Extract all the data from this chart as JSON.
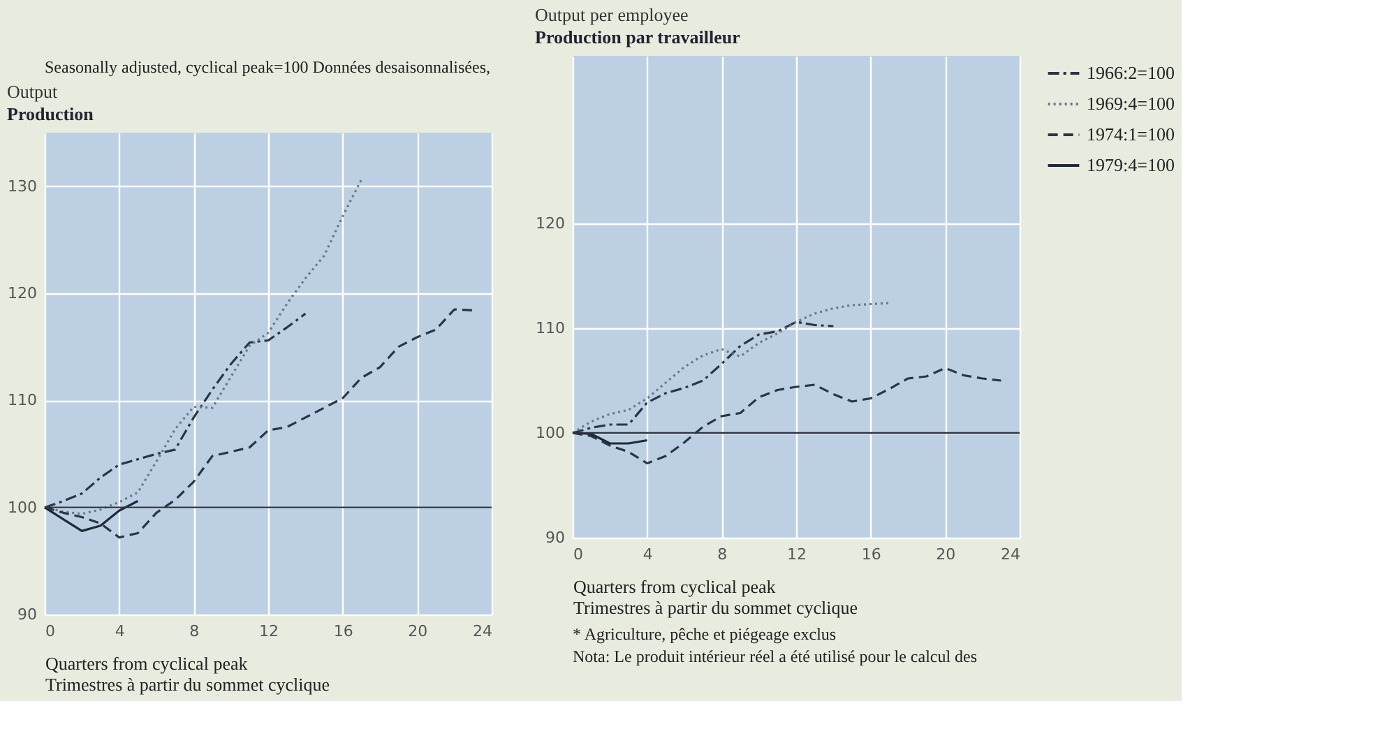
{
  "chart_data": [
    {
      "type": "line",
      "title": "Output",
      "subtitle": "Production",
      "xlabel": "Quarters from cyclical peak\nTrimestres à partir du sommet cyclique",
      "annotations": [
        "Seasonally adjusted, cyclical peak=100   Données desaisonnalisées,"
      ],
      "xlim": [
        0,
        24
      ],
      "xticks": [
        0,
        4,
        8,
        12,
        16,
        20,
        24
      ],
      "ylim": [
        90,
        135
      ],
      "yticks": [
        90,
        100,
        110,
        120,
        130
      ],
      "grid": true,
      "legend": false,
      "series": [
        {
          "color": "#2a3545",
          "line_style": "dashdot",
          "x": [
            0,
            1,
            2,
            3,
            4,
            5,
            6,
            7,
            8,
            9,
            10,
            11,
            12,
            13,
            14
          ],
          "values": [
            100,
            100.6,
            101.3,
            102.8,
            104.0,
            104.5,
            105.0,
            105.4,
            108.4,
            111.0,
            113.4,
            115.4,
            115.6,
            116.8,
            118.1
          ]
        },
        {
          "color": "#66788c",
          "line_style": "dotted",
          "x": [
            0,
            1,
            2,
            3,
            4,
            5,
            6,
            7,
            8,
            9,
            10,
            11,
            12,
            13,
            14,
            15,
            16,
            17
          ],
          "values": [
            100,
            99.6,
            99.4,
            99.8,
            100.5,
            101.4,
            104.3,
            107.3,
            109.4,
            109.3,
            112.2,
            115.1,
            116.3,
            119.0,
            121.4,
            123.5,
            127.2,
            130.6
          ]
        },
        {
          "color": "#2a3545",
          "line_style": "dashed",
          "x": [
            0,
            1,
            2,
            3,
            4,
            5,
            6,
            7,
            8,
            9,
            10,
            11,
            12,
            13,
            14,
            15,
            16,
            17,
            18,
            19,
            20,
            21,
            22,
            23
          ],
          "values": [
            100,
            99.5,
            99.1,
            98.5,
            97.2,
            97.6,
            99.5,
            100.7,
            102.4,
            104.8,
            105.2,
            105.6,
            107.2,
            107.5,
            108.4,
            109.3,
            110.2,
            112.1,
            113.1,
            115.0,
            115.9,
            116.6,
            118.5,
            118.4
          ]
        },
        {
          "color": "#1f2a38",
          "line_style": "solid",
          "x": [
            0,
            1,
            2,
            3,
            4,
            5
          ],
          "values": [
            100,
            98.9,
            97.8,
            98.3,
            99.7,
            100.6
          ]
        }
      ],
      "ref_lines": [
        {
          "axis": "y",
          "value": 100,
          "color": "#2a3545",
          "line_style": "solid"
        }
      ]
    },
    {
      "type": "line",
      "title": "Output per employee",
      "subtitle": "Production par travailleur",
      "xlabel": "Quarters from cyclical peak\nTrimestres à partir du sommet cyclique",
      "annotations": [
        "* Agriculture, pêche et piégeage exclus",
        "Nota: Le produit intérieur réel a été utilisé pour le calcul des"
      ],
      "xlim": [
        0,
        24
      ],
      "xticks": [
        0,
        4,
        8,
        12,
        16,
        20,
        24
      ],
      "ylim": [
        90,
        136
      ],
      "yticks": [
        90,
        100,
        110,
        120
      ],
      "grid": true,
      "legend": "right",
      "series": [
        {
          "name": "1966:2=100",
          "color": "#2a3545",
          "line_style": "dashdot",
          "x": [
            0,
            1,
            2,
            3,
            4,
            5,
            6,
            7,
            8,
            9,
            10,
            11,
            12,
            13,
            14
          ],
          "values": [
            100,
            100.5,
            100.8,
            100.8,
            102.9,
            103.8,
            104.3,
            105.0,
            106.6,
            108.3,
            109.4,
            109.7,
            110.6,
            110.3,
            110.2
          ]
        },
        {
          "name": "1969:4=100",
          "color": "#66788c",
          "line_style": "dotted",
          "x": [
            0,
            1,
            2,
            3,
            4,
            5,
            6,
            7,
            8,
            9,
            10,
            11,
            12,
            13,
            14,
            15,
            16,
            17
          ],
          "values": [
            100,
            101.1,
            101.8,
            102.2,
            103.3,
            104.8,
            106.3,
            107.4,
            108.0,
            107.3,
            108.6,
            109.5,
            110.6,
            111.4,
            111.9,
            112.2,
            112.3,
            112.4
          ]
        },
        {
          "name": "1974:1=100",
          "color": "#2a3545",
          "line_style": "dashed",
          "x": [
            0,
            1,
            2,
            3,
            4,
            5,
            6,
            7,
            8,
            9,
            10,
            11,
            12,
            13,
            14,
            15,
            16,
            17,
            18,
            19,
            20,
            21,
            22,
            23
          ],
          "values": [
            100,
            99.7,
            98.8,
            98.2,
            97.1,
            97.8,
            99.1,
            100.6,
            101.6,
            101.9,
            103.4,
            104.1,
            104.4,
            104.6,
            103.7,
            103.0,
            103.3,
            104.2,
            105.2,
            105.4,
            106.2,
            105.5,
            105.2,
            105.0
          ]
        },
        {
          "name": "1979:4=100",
          "color": "#1f2a38",
          "line_style": "solid",
          "x": [
            0,
            1,
            2,
            3,
            4
          ],
          "values": [
            100,
            99.9,
            99.0,
            99.0,
            99.3
          ]
        }
      ],
      "ref_lines": [
        {
          "axis": "y",
          "value": 100,
          "color": "#2a3545",
          "line_style": "solid"
        }
      ]
    }
  ]
}
